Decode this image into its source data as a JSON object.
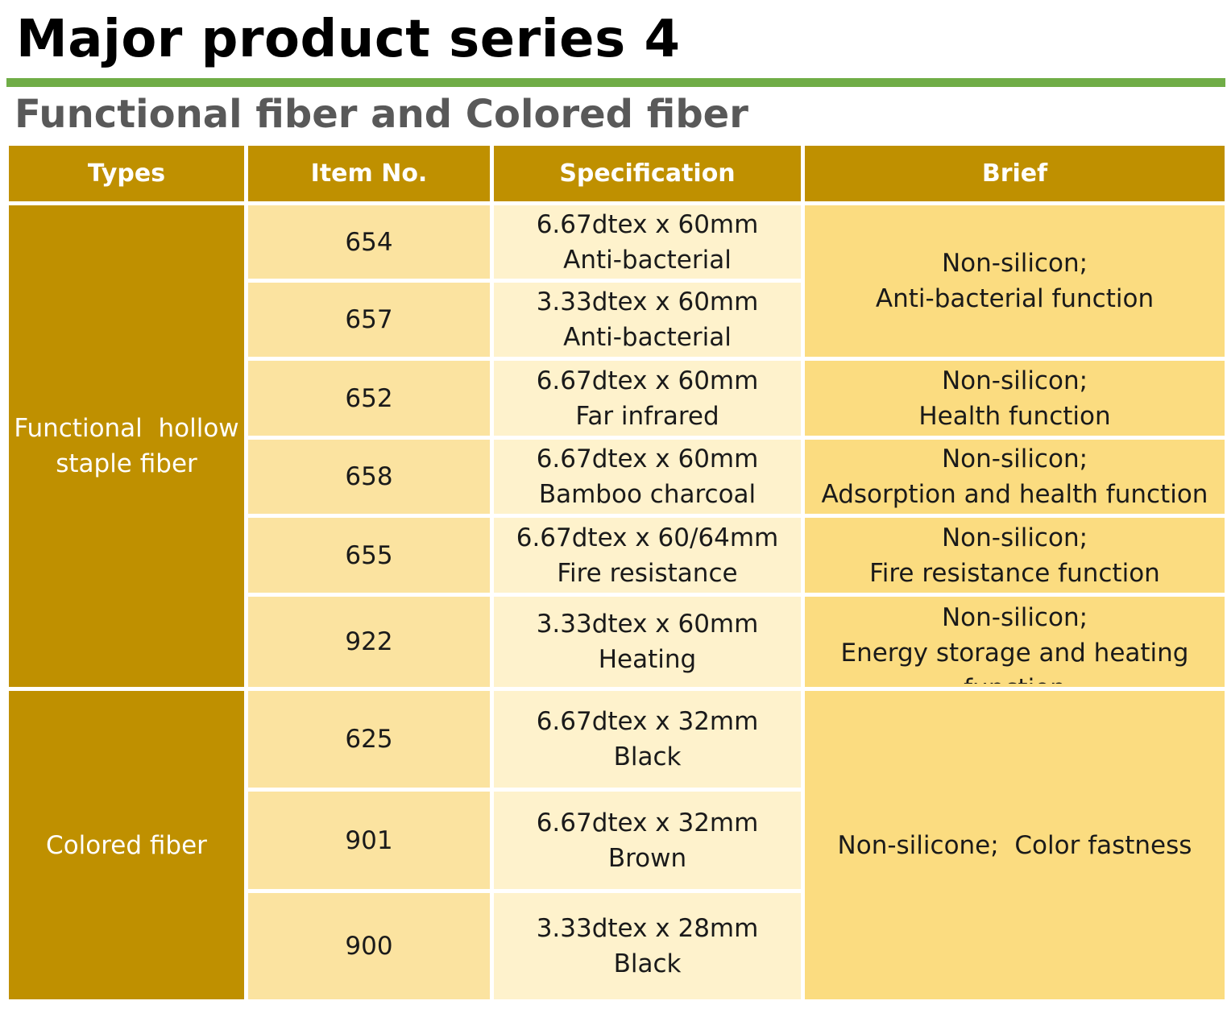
{
  "title": "Major product series 4",
  "subtitle": "Functional fiber and Colored fiber",
  "colors": {
    "green_rule": "#70ad47",
    "header_gold": "#bf9000",
    "item_fill": "#fbe3a0",
    "spec_fill": "#fef2cc",
    "brief_fill": "#fbdc80"
  },
  "table": {
    "headers": [
      "Types",
      "Item No.",
      "Specification",
      "Brief"
    ],
    "types": [
      {
        "lines": [
          "Functional  hollow",
          "staple fiber"
        ]
      },
      {
        "lines": [
          "Colored fiber"
        ]
      }
    ],
    "rows": [
      {
        "item": "654",
        "spec": [
          "6.67dtex x 60mm",
          "Anti-bacterial"
        ]
      },
      {
        "item": "657",
        "spec": [
          "3.33dtex x 60mm",
          "Anti-bacterial"
        ]
      },
      {
        "item": "652",
        "spec": [
          "6.67dtex x 60mm",
          "Far infrared"
        ]
      },
      {
        "item": "658",
        "spec": [
          "6.67dtex x 60mm",
          "Bamboo charcoal"
        ]
      },
      {
        "item": "655",
        "spec": [
          "6.67dtex x 60/64mm",
          "Fire resistance"
        ]
      },
      {
        "item": "922",
        "spec": [
          "3.33dtex x 60mm",
          "Heating"
        ]
      },
      {
        "item": "625",
        "spec": [
          "6.67dtex x 32mm",
          "Black"
        ]
      },
      {
        "item": "901",
        "spec": [
          "6.67dtex x 32mm",
          "Brown"
        ]
      },
      {
        "item": "900",
        "spec": [
          "3.33dtex x 28mm",
          "Black"
        ]
      }
    ],
    "briefs": [
      {
        "lines": [
          "Non-silicon;",
          "Anti-bacterial function"
        ]
      },
      {
        "lines": [
          "Non-silicon;",
          "Health function"
        ]
      },
      {
        "lines": [
          "Non-silicon;",
          "Adsorption and health function"
        ]
      },
      {
        "lines": [
          "Non-silicon;",
          "Fire resistance function"
        ]
      },
      {
        "lines": [
          "Non-silicon;",
          "Energy storage and heating",
          "function"
        ]
      },
      {
        "lines": [
          "Non-silicone;  Color fastness"
        ]
      }
    ]
  }
}
